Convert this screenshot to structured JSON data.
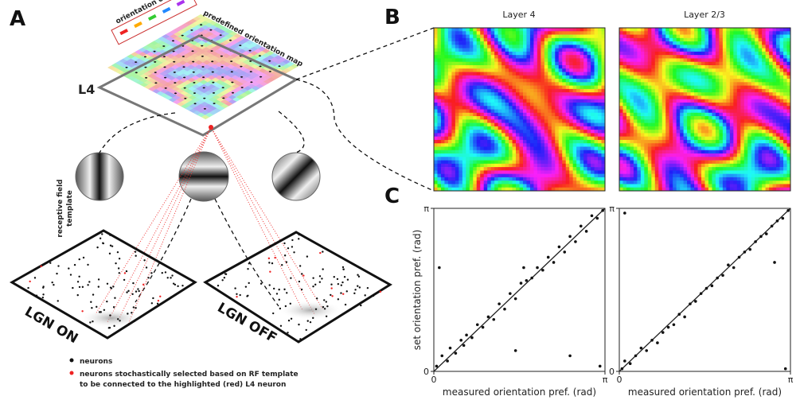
{
  "panel_labels": [
    "A",
    "B",
    "C"
  ],
  "panel_a": {
    "color_key": "orientation color key",
    "map_label": "predefined orientation map",
    "layer": "L4",
    "rf_label_1": "receptive field",
    "rf_label_2": "template",
    "lgn_on": "LGN ON",
    "lgn_off": "LGN OFF",
    "legend": [
      "neurons",
      "neurons stochastically selected based on RF template",
      "to be connected to the highlighted (red) L4 neuron"
    ]
  },
  "panel_b": {
    "titles": [
      "Layer 4",
      "Layer 2/3"
    ]
  },
  "chart_data": [
    {
      "type": "scatter",
      "xlabel": "measured orientation pref. (rad)",
      "ylabel": "set orientation pref. (rad)",
      "x": [
        0.05,
        0.15,
        0.25,
        0.3,
        0.4,
        0.5,
        0.55,
        0.6,
        0.7,
        0.8,
        0.9,
        1.0,
        1.1,
        1.2,
        1.3,
        1.4,
        1.5,
        1.6,
        1.7,
        1.8,
        1.9,
        2.0,
        2.1,
        2.2,
        2.3,
        2.4,
        2.5,
        2.6,
        2.7,
        2.8,
        2.9,
        3.0,
        3.1,
        1.5,
        2.5,
        0.1,
        3.05,
        1.65
      ],
      "y": [
        0.1,
        0.3,
        0.2,
        0.45,
        0.35,
        0.6,
        0.5,
        0.7,
        0.65,
        0.9,
        0.85,
        1.05,
        1.0,
        1.3,
        1.2,
        1.5,
        1.4,
        1.7,
        1.75,
        1.8,
        2.0,
        1.95,
        2.2,
        2.1,
        2.4,
        2.3,
        2.6,
        2.5,
        2.8,
        2.7,
        3.0,
        2.95,
        3.1,
        0.4,
        0.3,
        2.0,
        0.1,
        2.0
      ],
      "xlim": [
        0,
        3.1416
      ],
      "ylim": [
        0,
        3.1416
      ],
      "xticks": [
        0,
        {
          "value": 3.1416,
          "label": "π"
        }
      ],
      "yticks": [
        0,
        {
          "value": 3.1416,
          "label": "π"
        }
      ]
    },
    {
      "type": "scatter",
      "xlabel": "measured orientation pref. (rad)",
      "x": [
        0.05,
        0.1,
        0.2,
        0.3,
        0.4,
        0.5,
        0.6,
        0.7,
        0.8,
        0.9,
        1.0,
        1.1,
        1.2,
        1.3,
        1.4,
        1.5,
        1.6,
        1.7,
        1.8,
        1.9,
        2.0,
        2.1,
        2.2,
        2.3,
        2.4,
        2.5,
        2.6,
        2.7,
        2.8,
        2.9,
        3.0,
        3.1,
        0.1,
        3.05,
        2.85
      ],
      "y": [
        0.05,
        0.2,
        0.15,
        0.3,
        0.45,
        0.4,
        0.6,
        0.55,
        0.75,
        0.85,
        0.9,
        1.1,
        1.05,
        1.3,
        1.35,
        1.5,
        1.6,
        1.65,
        1.8,
        1.85,
        2.05,
        2.0,
        2.2,
        2.3,
        2.35,
        2.5,
        2.6,
        2.65,
        2.8,
        2.9,
        2.95,
        3.1,
        3.05,
        0.05,
        2.1
      ],
      "xlim": [
        0,
        3.1416
      ],
      "ylim": [
        0,
        3.1416
      ],
      "xticks": [
        0,
        {
          "value": 3.1416,
          "label": "π"
        }
      ],
      "yticks": [
        0,
        {
          "value": 3.1416,
          "label": "π"
        }
      ]
    }
  ]
}
